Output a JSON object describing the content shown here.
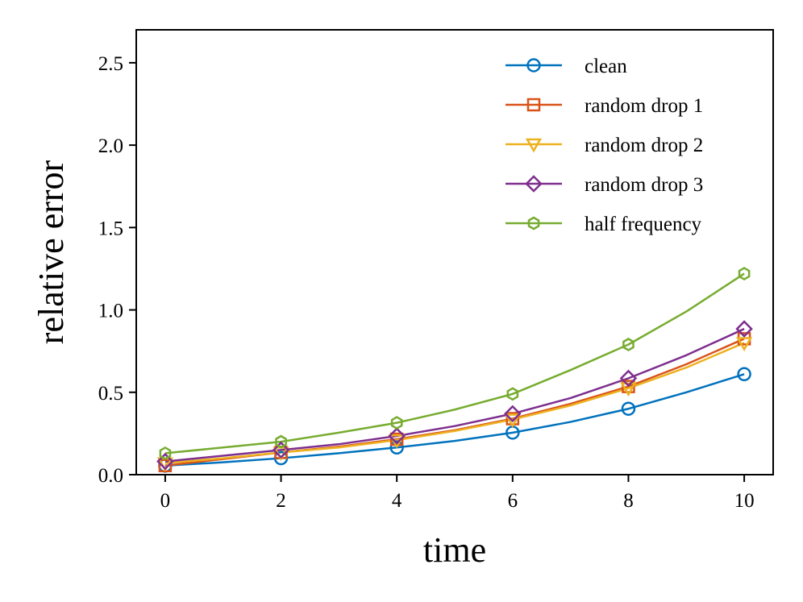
{
  "chart_data": {
    "type": "line",
    "title": "",
    "xlabel": "time",
    "ylabel": "relative error",
    "xlim": [
      -0.5,
      10.5
    ],
    "ylim": [
      0.0,
      2.7
    ],
    "xticks": [
      0,
      2,
      4,
      6,
      8,
      10
    ],
    "yticks": [
      0.0,
      0.5,
      1.0,
      1.5,
      2.0,
      2.5
    ],
    "xtick_labels": [
      "0",
      "2",
      "4",
      "6",
      "8",
      "10"
    ],
    "ytick_labels": [
      "0.0",
      "0.5",
      "1.0",
      "1.5",
      "2.0",
      "2.5"
    ],
    "grid": false,
    "legend_position": "top-right",
    "series": [
      {
        "name": "clean",
        "color": "#0072BD",
        "marker": "circle",
        "x": [
          0,
          1,
          2,
          3,
          4,
          5,
          6,
          7,
          8,
          9,
          10
        ],
        "values": [
          0.055,
          0.075,
          0.1,
          0.13,
          0.165,
          0.205,
          0.255,
          0.32,
          0.4,
          0.5,
          0.61
        ],
        "marker_x": [
          0,
          2,
          4,
          6,
          8,
          10
        ]
      },
      {
        "name": "random drop 1",
        "color": "#D95319",
        "marker": "square",
        "x": [
          0,
          1,
          2,
          3,
          4,
          5,
          6,
          7,
          8,
          9,
          10
        ],
        "values": [
          0.055,
          0.095,
          0.135,
          0.17,
          0.215,
          0.27,
          0.34,
          0.43,
          0.535,
          0.67,
          0.825
        ],
        "marker_x": [
          0,
          2,
          4,
          6,
          8,
          10
        ]
      },
      {
        "name": "random drop 2",
        "color": "#EDB120",
        "marker": "triangle-down",
        "x": [
          0,
          1,
          2,
          3,
          4,
          5,
          6,
          7,
          8,
          9,
          10
        ],
        "values": [
          0.07,
          0.1,
          0.135,
          0.165,
          0.21,
          0.265,
          0.335,
          0.42,
          0.525,
          0.65,
          0.8
        ],
        "marker_x": [
          0,
          2,
          4,
          6,
          8,
          10
        ]
      },
      {
        "name": "random drop 3",
        "color": "#7E2F8E",
        "marker": "diamond",
        "x": [
          0,
          1,
          2,
          3,
          4,
          5,
          6,
          7,
          8,
          9,
          10
        ],
        "values": [
          0.08,
          0.115,
          0.15,
          0.185,
          0.235,
          0.295,
          0.37,
          0.465,
          0.585,
          0.725,
          0.885
        ],
        "marker_x": [
          0,
          2,
          4,
          6,
          8,
          10
        ]
      },
      {
        "name": "half frequency",
        "color": "#77AC30",
        "marker": "hexagon",
        "x": [
          0,
          1,
          2,
          3,
          4,
          5,
          6,
          7,
          8,
          9,
          10
        ],
        "values": [
          0.13,
          0.165,
          0.2,
          0.255,
          0.315,
          0.395,
          0.49,
          0.635,
          0.79,
          0.99,
          1.22
        ],
        "marker_x": [
          0,
          2,
          4,
          6,
          8,
          10
        ]
      }
    ]
  }
}
